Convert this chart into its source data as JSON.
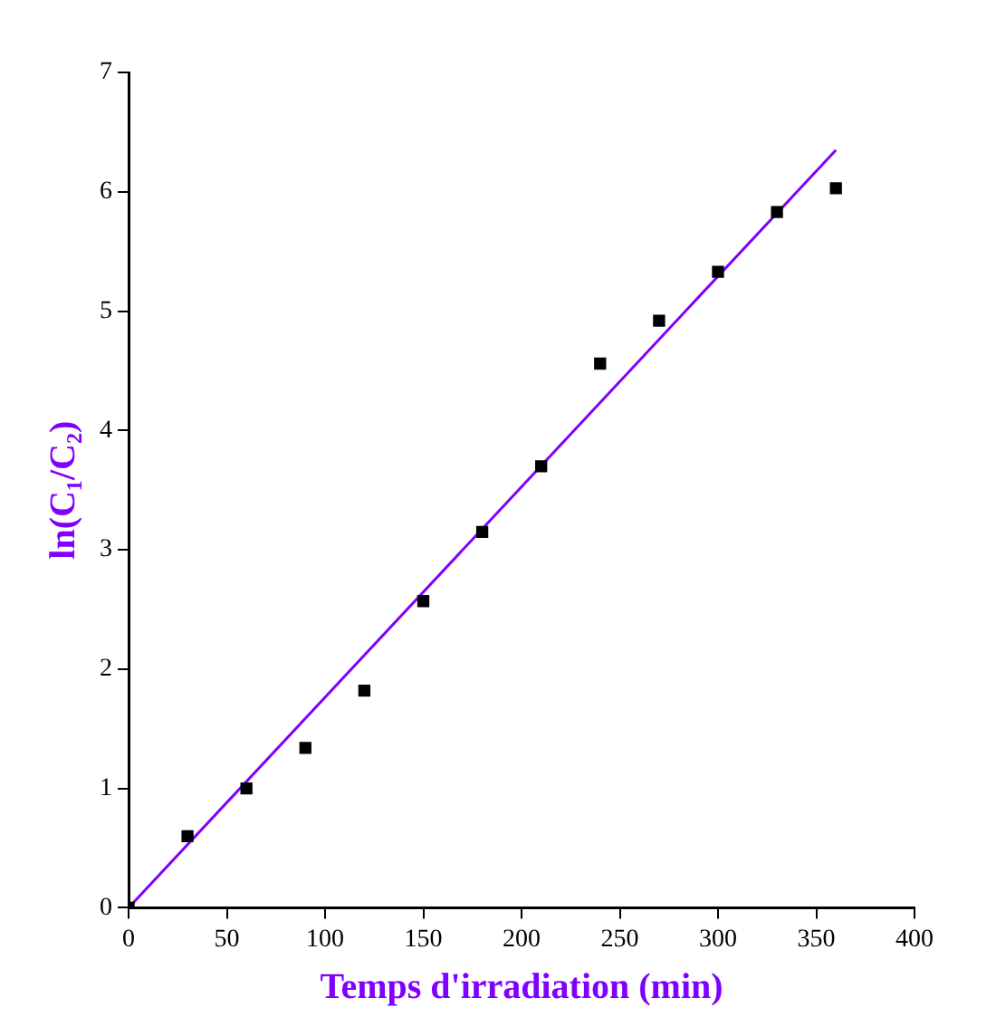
{
  "chart_data": {
    "type": "scatter",
    "xlabel": "Temps d'irradiation (min)",
    "ylabel": "ln(C₁/C₂)",
    "xlim": [
      0,
      400
    ],
    "ylim": [
      0,
      7
    ],
    "xticks": [
      0,
      50,
      100,
      150,
      200,
      250,
      300,
      350,
      400
    ],
    "yticks": [
      0,
      1,
      2,
      3,
      4,
      5,
      6,
      7
    ],
    "grid": false,
    "legend": false,
    "series": [
      {
        "color": "#000000",
        "marker": "square",
        "x": [
          0,
          30,
          60,
          90,
          120,
          150,
          180,
          210,
          240,
          270,
          300,
          330,
          360
        ],
        "values": [
          0,
          0.6,
          1.0,
          1.34,
          1.82,
          2.57,
          3.15,
          3.7,
          4.56,
          4.92,
          5.33,
          5.83,
          6.03
        ]
      },
      {
        "type": "line",
        "color": "#8000ff",
        "x": [
          0,
          360
        ],
        "values": [
          0,
          6.35
        ]
      }
    ]
  }
}
